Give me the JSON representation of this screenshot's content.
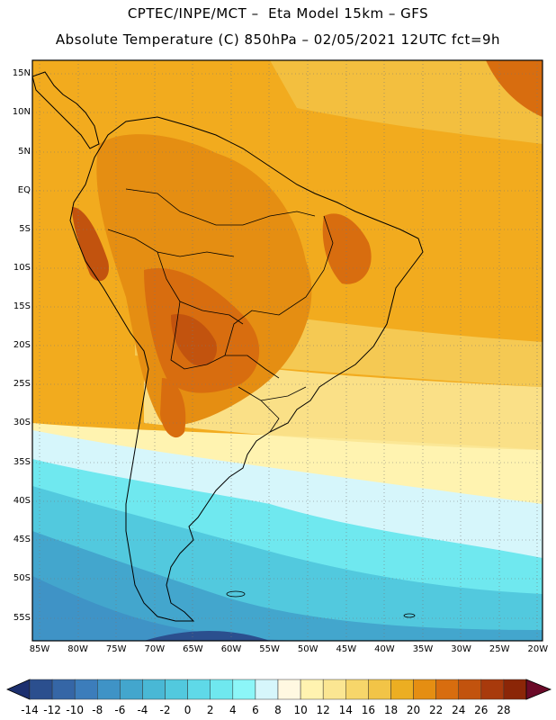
{
  "title_line1": "CPTEC/INPE/MCT –  Eta Model 15km – GFS",
  "title_line2": "Absolute Temperature (C) 850hPa – 02/05/2021 12UTC fct=9h",
  "lat_labels": [
    "15N",
    "10N",
    "5N",
    "EQ",
    "5S",
    "10S",
    "15S",
    "20S",
    "25S",
    "30S",
    "35S",
    "40S",
    "45S",
    "50S",
    "55S"
  ],
  "lon_labels": [
    "85W",
    "80W",
    "75W",
    "70W",
    "65W",
    "60W",
    "55W",
    "50W",
    "45W",
    "40W",
    "35W",
    "30W",
    "25W",
    "20W"
  ],
  "colorbar": {
    "values": [
      "-14",
      "-12",
      "-10",
      "-8",
      "-6",
      "-4",
      "-2",
      "0",
      "2",
      "4",
      "6",
      "8",
      "10",
      "12",
      "14",
      "16",
      "18",
      "20",
      "22",
      "24",
      "26",
      "28"
    ],
    "colors": [
      "#2b4f8e",
      "#3566a6",
      "#3c7dbb",
      "#3f93c6",
      "#43a6cd",
      "#49b8d5",
      "#52c9de",
      "#5fd9e8",
      "#6fe8ef",
      "#8cf6f8",
      "#d6f6fb",
      "#fff8e1",
      "#fff3b0",
      "#fbe692",
      "#f7d66a",
      "#f2c447",
      "#ecae22",
      "#e58e12",
      "#d86d0f",
      "#c2530e",
      "#a83a0c",
      "#8b2607"
    ],
    "low_arrow_color": "#1c2f6e",
    "high_arrow_color": "#6b0a28"
  }
}
